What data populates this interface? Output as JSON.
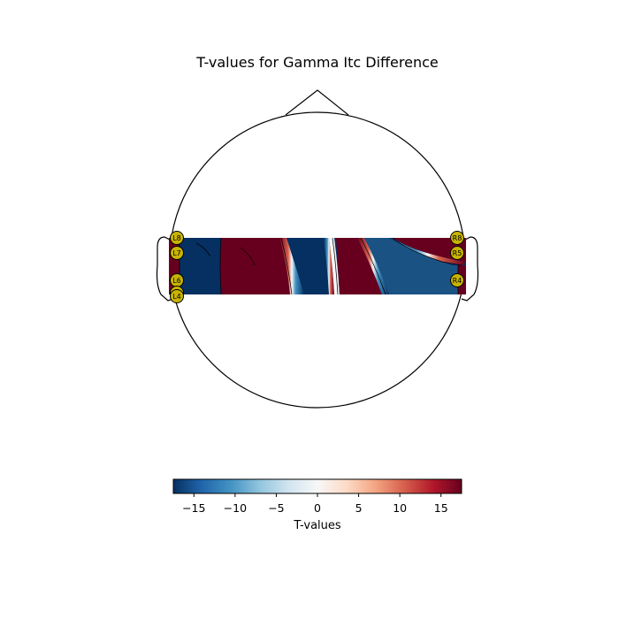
{
  "chart_data": {
    "type": "heatmap",
    "title": "T-values for Gamma Itc Difference",
    "colorbar": {
      "label": "T-values",
      "colormap": "RdBu_r",
      "range": [
        -17.5,
        17.5
      ],
      "ticks": [
        -15,
        -10,
        -5,
        0,
        5,
        10,
        15
      ],
      "tick_labels": [
        "−15",
        "−10",
        "−5",
        "0",
        "5",
        "10",
        "15"
      ]
    },
    "sensors": {
      "left": [
        "L8",
        "L7",
        "L6",
        "L5",
        "L4"
      ],
      "right": [
        "R8",
        "R5",
        "R4"
      ]
    },
    "sensor_color": "#c8b400",
    "field_colors": {
      "positive": "#67001f",
      "negative": "#053061"
    }
  }
}
